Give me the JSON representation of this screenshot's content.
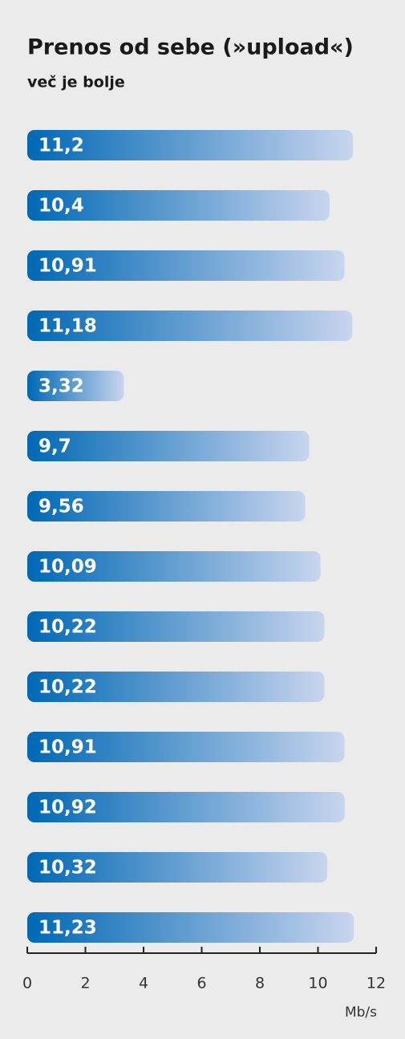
{
  "chart_data": {
    "type": "bar",
    "orientation": "horizontal",
    "title": "Prenos od sebe (»upload«)",
    "subtitle": "več je bolje",
    "values": [
      11.2,
      10.4,
      10.91,
      11.18,
      3.32,
      9.7,
      9.56,
      10.09,
      10.22,
      10.22,
      10.91,
      10.92,
      10.32,
      11.23
    ],
    "value_labels": [
      "11,2",
      "10,4",
      "10,91",
      "11,18",
      "3,32",
      "9,7",
      "9,56",
      "10,09",
      "10,22",
      "10,22",
      "10,91",
      "10,92",
      "10,32",
      "11,23"
    ],
    "gradient": [
      "#0068b4",
      "#c8d5ee"
    ],
    "xlim": [
      0,
      12
    ],
    "xticks": [
      0,
      2,
      4,
      6,
      8,
      10,
      12
    ],
    "xlabel": "Mb/s"
  }
}
